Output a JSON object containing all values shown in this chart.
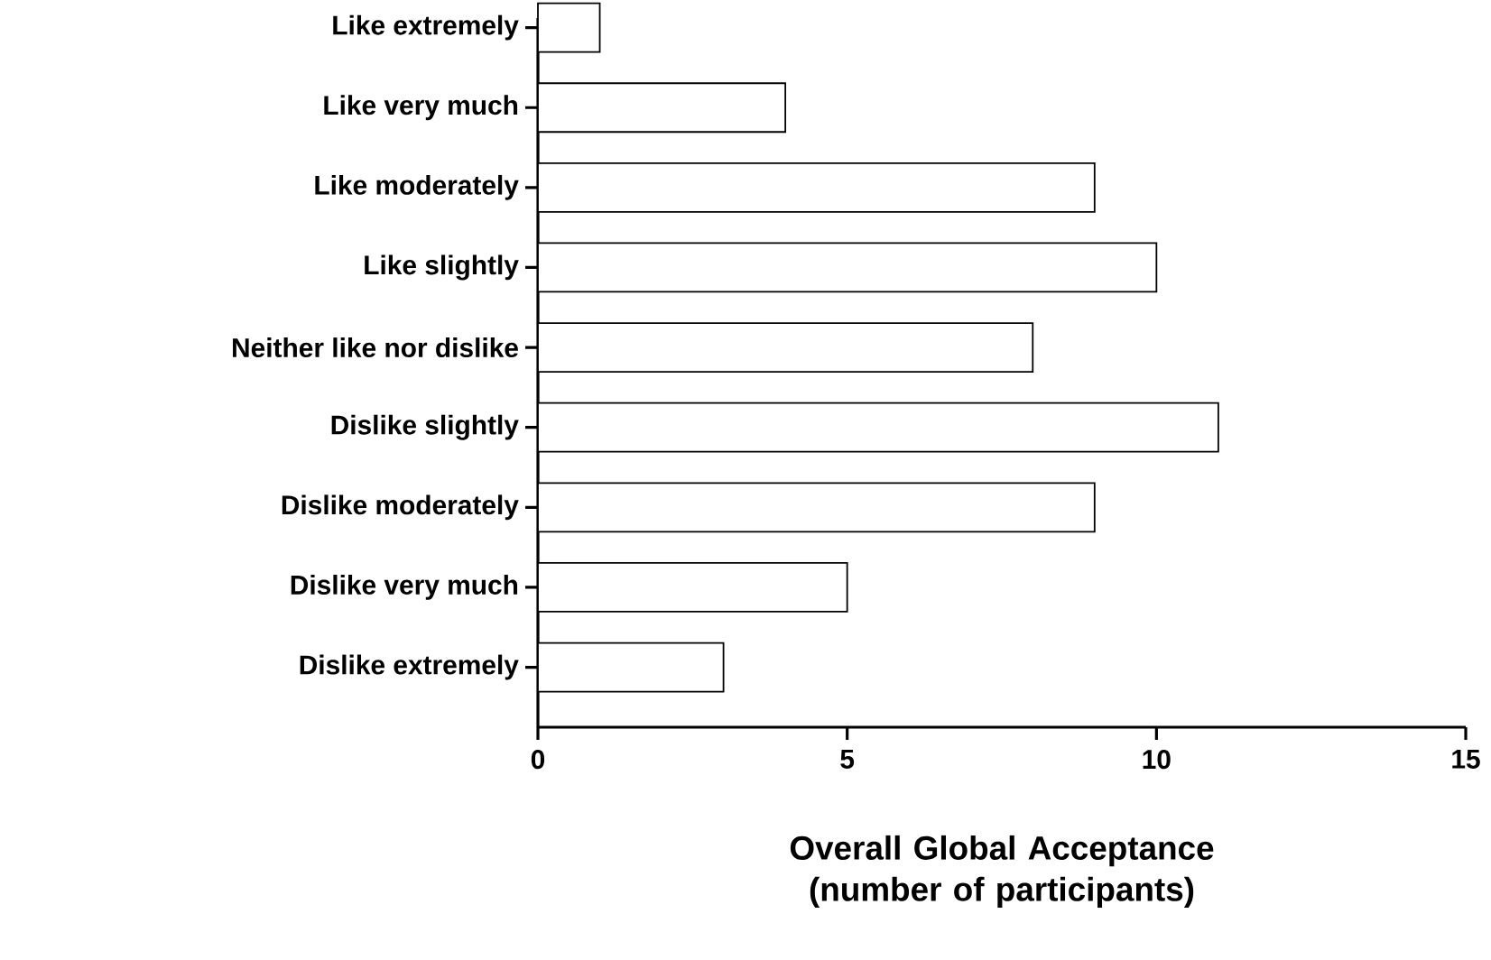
{
  "chart_data": {
    "type": "bar",
    "orientation": "horizontal",
    "xlabel": "Overall Global Acceptance (number of participants)",
    "categories": [
      "Like extremely",
      "Like very much",
      "Like moderately",
      "Like slightly",
      "Neither like nor dislike",
      "Dislike slightly",
      "Dislike moderately",
      "Dislike very much",
      "Dislike extremely"
    ],
    "values": [
      1,
      4,
      9,
      10,
      8,
      11,
      9,
      5,
      3
    ],
    "color": "#ffffff",
    "xlim": [
      0,
      15
    ],
    "xticks": [
      0,
      5,
      10,
      15
    ],
    "grid": false
  }
}
